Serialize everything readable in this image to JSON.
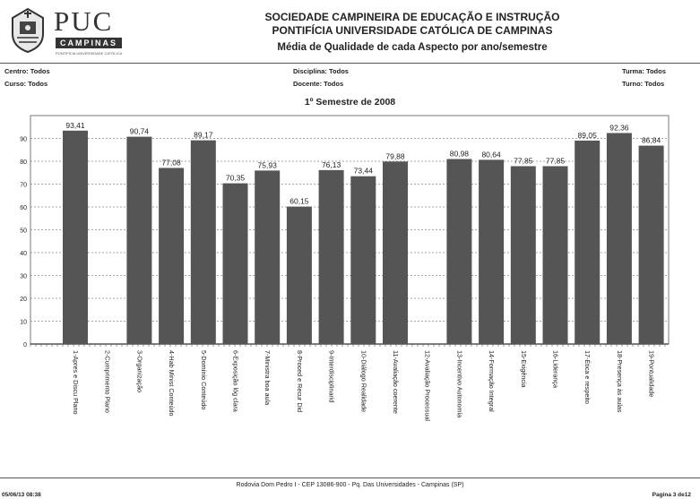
{
  "header": {
    "logo_text": "PUC",
    "logo_box_text": "CAMPINAS",
    "logo_subtitle": "PONTIFÍCIA UNIVERSIDADE CATÓLICA",
    "line1": "SOCIEDADE CAMPINEIRA DE EDUCAÇÃO E INSTRUÇÃO",
    "line2": "PONTIFÍCIA UNIVERSIDADE CATÓLICA DE CAMPINAS",
    "line3": "Média de Qualidade de cada Aspecto por ano/semestre"
  },
  "filters": {
    "centro": "Centro: Todos",
    "curso": "Curso: Todos",
    "disciplina": "Disciplina: Todos",
    "docente": "Docente: Todos",
    "turma": "Turma: Todos",
    "turno": "Turno: Todos"
  },
  "chart_data": {
    "type": "bar",
    "title": "1º Semestre de  2008",
    "categories": [
      "1-Apres e Discu Plano",
      "2-Cumprimento Plano",
      "3-Organização",
      "4-Hab Minist Conteúdo",
      "5-Domínio Conteúdo",
      "6-Exposição lóg clara",
      "7-Ministra boa aula",
      "8-Proced e Recur Did",
      "9-Interdisciplinarid",
      "10-Diálogo Realidade",
      "11-Avaliação coerente",
      "12-Avaliação Processual",
      "13-Incentivo Autonomia",
      "14-Formação Integral",
      "15-Exigência",
      "16-Liderança",
      "17-Ética e respeito",
      "18-Presença às aulas",
      "19-Pontualidade"
    ],
    "values": [
      93.41,
      null,
      90.74,
      77.08,
      89.17,
      70.35,
      75.93,
      60.15,
      76.13,
      73.44,
      79.88,
      null,
      80.98,
      80.64,
      77.85,
      77.85,
      89.05,
      92.36,
      86.84
    ],
    "value_labels": [
      "93,41",
      "",
      "90,74",
      "77,08",
      "89,17",
      "70,35",
      "75,93",
      "60,15",
      "76,13",
      "73,44",
      "79,88",
      "",
      "80,98",
      "80,64",
      "77,85",
      "77,85",
      "89,05",
      "92,36",
      "86,84"
    ],
    "yticks": [
      0,
      10,
      20,
      30,
      40,
      50,
      60,
      70,
      80,
      90
    ],
    "ylim": [
      0,
      100
    ],
    "xlabel": "",
    "ylabel": "",
    "grid": true,
    "bar_color": "#555555"
  },
  "footer": {
    "address": "Rodovia Dom Pedro I - CEP 13086-900 - Pq. Das Universidades - Campinas (SP)",
    "date": "05/06/13 08:38",
    "page": "Pagina 3 de12"
  }
}
